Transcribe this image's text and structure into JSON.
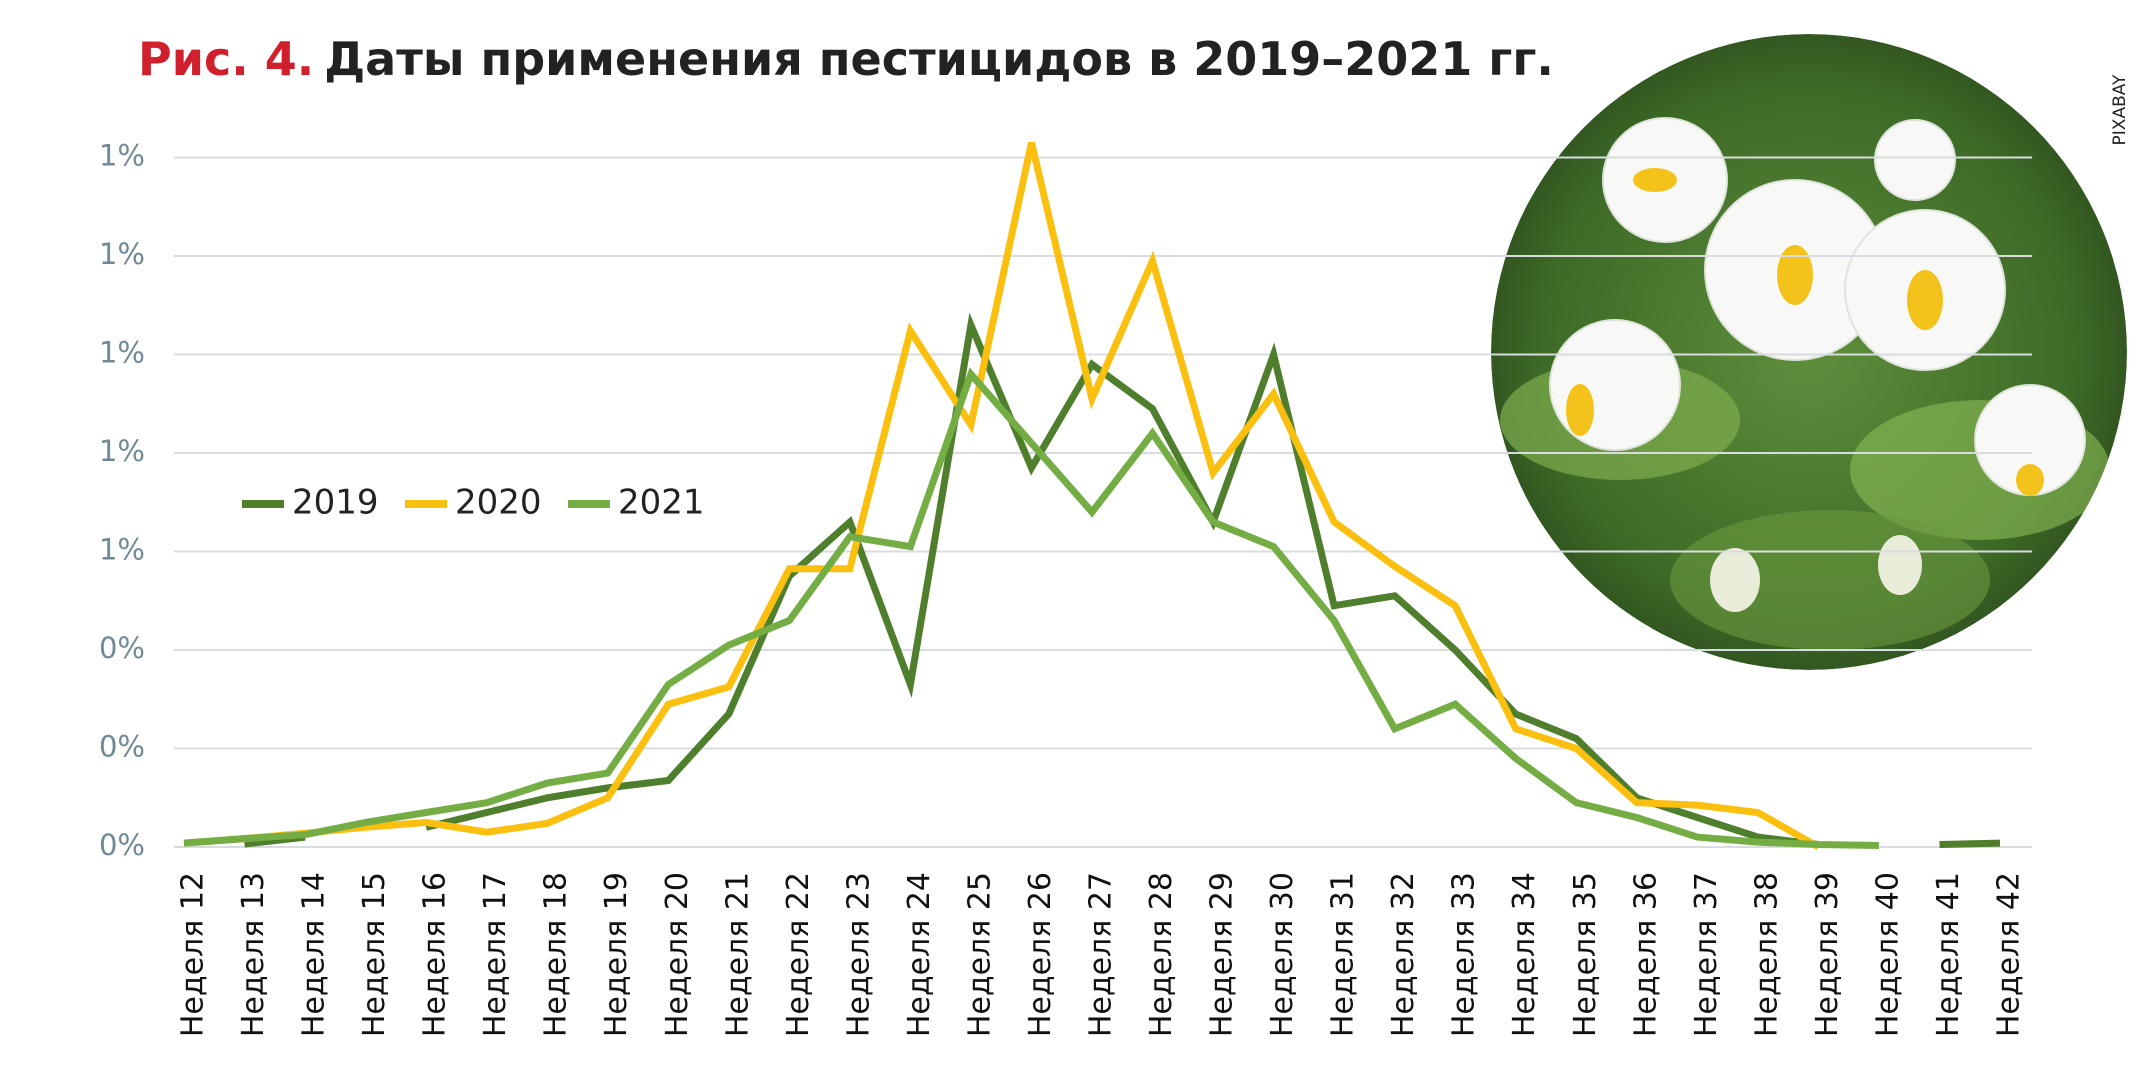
{
  "chart_data": {
    "type": "line",
    "title_label": "Рис. 4.",
    "title": "Даты применения пестицидов в 2019–2021 гг.",
    "photo_credit": "PIXABAY",
    "categories": [
      "Неделя 12",
      "Неделя 13",
      "Неделя 14",
      "Неделя 15",
      "Неделя 16",
      "Неделя 17",
      "Неделя 18",
      "Неделя 19",
      "Неделя 20",
      "Неделя 21",
      "Неделя 22",
      "Неделя 23",
      "Неделя 24",
      "Неделя 25",
      "Неделя 26",
      "Неделя 27",
      "Неделя 28",
      "Неделя 29",
      "Неделя 30",
      "Неделя 31",
      "Неделя 32",
      "Неделя 33",
      "Неделя 34",
      "Неделя 35",
      "Неделя 36",
      "Неделя 37",
      "Неделя 38",
      "Неделя 39",
      "Неделя 40",
      "Неделя 41",
      "Неделя 42"
    ],
    "series": [
      {
        "name": "2019",
        "color": "#4f7f2c",
        "values": [
          null,
          0.006,
          0.02,
          null,
          0.04,
          0.07,
          0.1,
          0.12,
          0.135,
          0.27,
          0.55,
          0.66,
          0.33,
          1.06,
          0.77,
          0.98,
          0.89,
          0.66,
          1.0,
          0.49,
          0.51,
          0.4,
          0.27,
          0.22,
          0.1,
          0.06,
          0.02,
          0.005,
          null,
          0.005,
          0.008
        ]
      },
      {
        "name": "2020",
        "color": "#fbbf10",
        "values": [
          0.008,
          0.017,
          0.028,
          0.04,
          0.05,
          0.03,
          0.048,
          0.1,
          0.29,
          0.325,
          0.565,
          0.565,
          1.048,
          0.857,
          1.43,
          0.91,
          1.19,
          0.76,
          0.92,
          0.66,
          0.57,
          0.49,
          0.24,
          0.2,
          0.09,
          0.085,
          0.07,
          0.0,
          null,
          null,
          null
        ]
      },
      {
        "name": "2021",
        "color": "#74ad44",
        "values": [
          0.008,
          0.017,
          0.025,
          0.05,
          0.07,
          0.09,
          0.13,
          0.15,
          0.33,
          0.41,
          0.46,
          0.63,
          0.61,
          0.96,
          0.82,
          0.68,
          0.84,
          0.66,
          0.61,
          0.46,
          0.24,
          0.29,
          0.18,
          0.09,
          0.06,
          0.02,
          0.01,
          0.005,
          0.003,
          null,
          null
        ]
      }
    ],
    "ylim": [
      0,
      1.5
    ],
    "yticks": [
      {
        "value": 0,
        "label": "0%"
      },
      {
        "value": 0.2,
        "label": "0%"
      },
      {
        "value": 0.4,
        "label": "0%"
      },
      {
        "value": 0.6,
        "label": "1%"
      },
      {
        "value": 0.8,
        "label": "1%"
      },
      {
        "value": 1.0,
        "label": "1%"
      },
      {
        "value": 1.2,
        "label": "1%"
      },
      {
        "value": 1.4,
        "label": "1%"
      }
    ],
    "grid": true
  }
}
